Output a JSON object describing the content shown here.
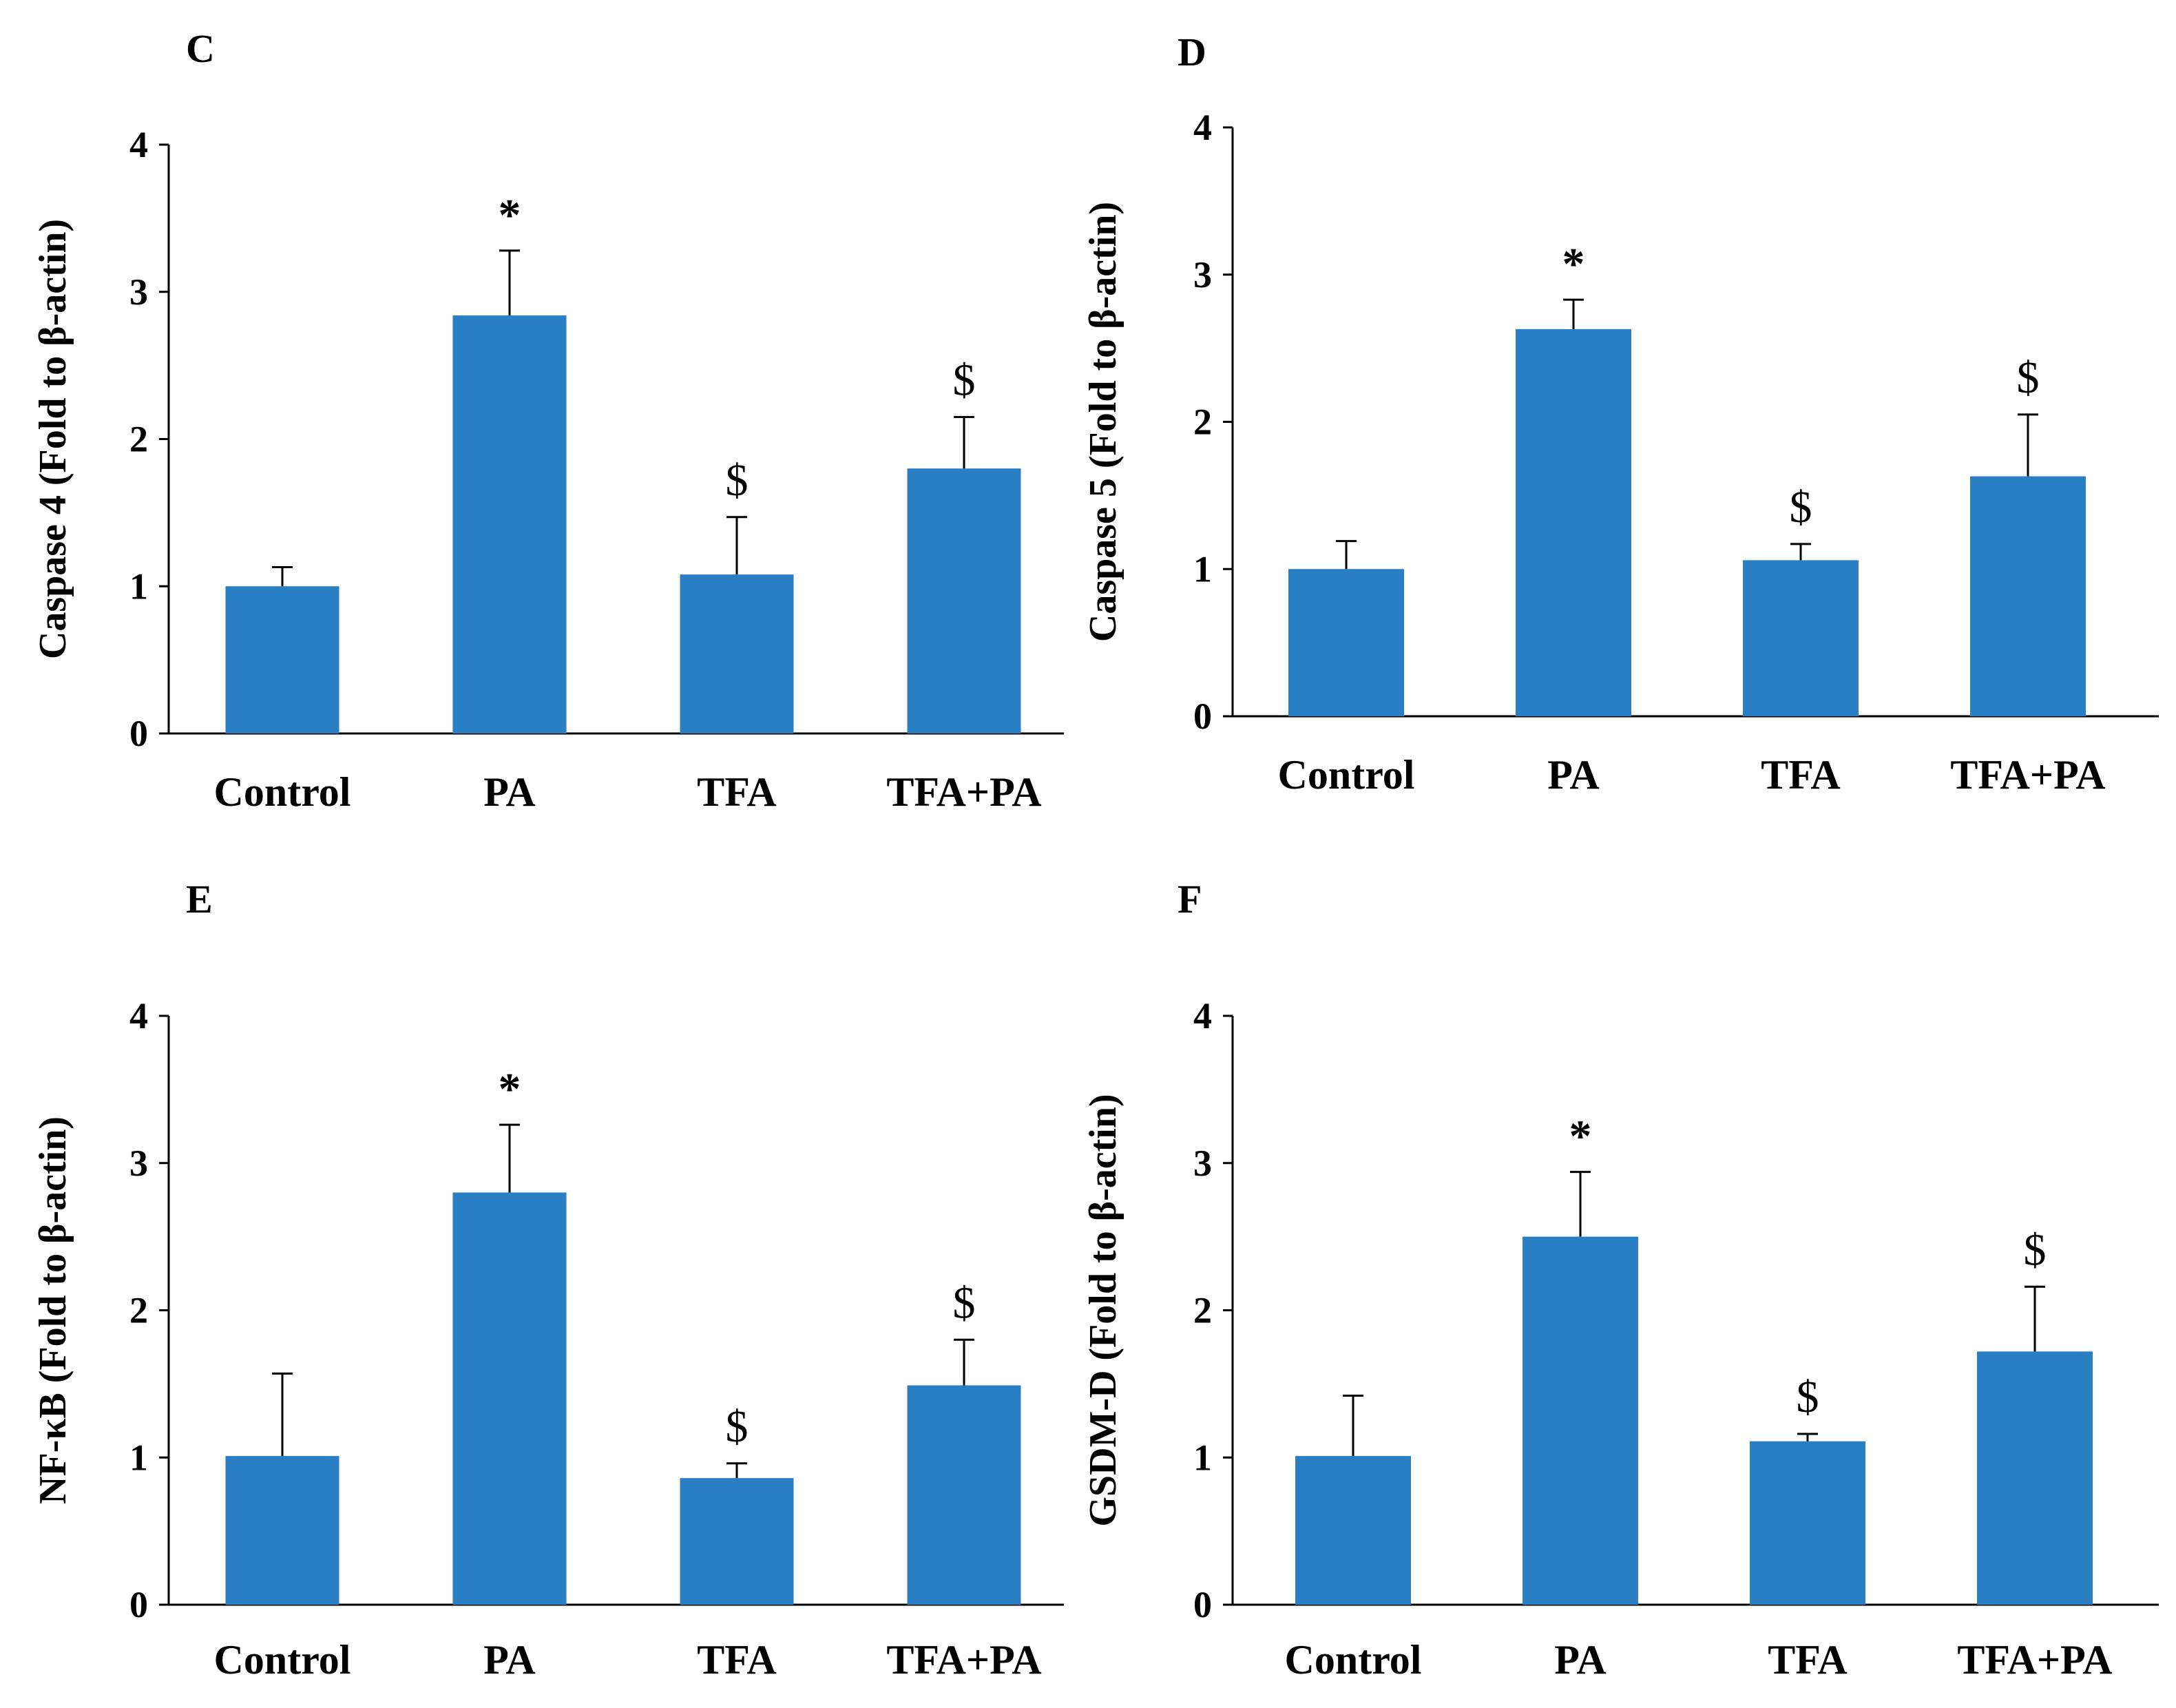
{
  "figure": {
    "colors": {
      "bar": "#2a7ec3",
      "axis": "#000000",
      "error": "#000000"
    }
  },
  "chart_data": [
    {
      "panel": "C",
      "type": "bar",
      "categories": [
        "Control",
        "PA",
        "TFA",
        "TFA+PA"
      ],
      "values": [
        1.0,
        2.84,
        1.08,
        1.8
      ],
      "errors": [
        0.13,
        0.44,
        0.39,
        0.35
      ],
      "annotations": [
        "",
        "*",
        "$",
        "$"
      ],
      "ylabel": "Caspase 4  (Fold to β-actin)",
      "yticks": [
        "0",
        "1",
        "2",
        "3",
        "4"
      ],
      "ylim": [
        0,
        4
      ]
    },
    {
      "panel": "D",
      "type": "bar",
      "categories": [
        "Control",
        "PA",
        "TFA",
        "TFA+PA"
      ],
      "values": [
        1.0,
        2.63,
        1.06,
        1.63
      ],
      "errors": [
        0.19,
        0.2,
        0.11,
        0.42
      ],
      "annotations": [
        "",
        "*",
        "$",
        "$"
      ],
      "ylabel": "Caspase 5  (Fold to β-actin)",
      "yticks": [
        "0",
        "1",
        "2",
        "3",
        "4"
      ],
      "ylim": [
        0,
        4
      ]
    },
    {
      "panel": "E",
      "type": "bar",
      "categories": [
        "Control",
        "PA",
        "TFA",
        "TFA+PA"
      ],
      "values": [
        1.01,
        2.8,
        0.86,
        1.49
      ],
      "errors": [
        0.56,
        0.46,
        0.1,
        0.31
      ],
      "annotations": [
        "",
        "*",
        "$",
        "$"
      ],
      "ylabel": "NF-κB (Fold to β-actin)",
      "yticks": [
        "0",
        "1",
        "2",
        "3",
        "4"
      ],
      "ylim": [
        0,
        4
      ]
    },
    {
      "panel": "F",
      "type": "bar",
      "categories": [
        "Control",
        "PA",
        "TFA",
        "TFA+PA"
      ],
      "values": [
        1.01,
        2.5,
        1.11,
        1.72
      ],
      "errors": [
        0.41,
        0.44,
        0.05,
        0.44
      ],
      "annotations": [
        "",
        "*",
        "$",
        "$"
      ],
      "ylabel": "GSDM-D (Fold to β-actin)",
      "yticks": [
        "0",
        "1",
        "2",
        "3",
        "4"
      ],
      "ylim": [
        0,
        4
      ]
    }
  ]
}
